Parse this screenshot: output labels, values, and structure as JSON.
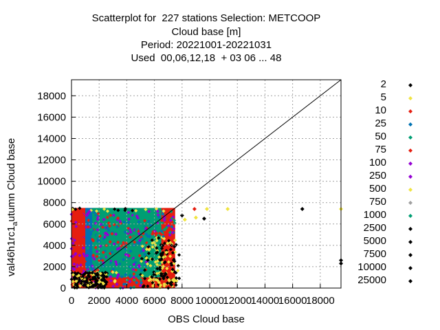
{
  "header": {
    "lines": [
      "Scatterplot for  227 stations Selection: METCOOP",
      "Cloud base [m]",
      "Period: 20221001-20221031",
      "Used  00,06,12,18  + 03 06 ... 48"
    ]
  },
  "chart_data": {
    "type": "scatter",
    "title": "Scatterplot for  227 stations Selection: METCOOP",
    "subtitle": [
      "Cloud base [m]",
      "Period: 20221001-20221031",
      "Used  00,06,12,18  + 03 06 ... 48"
    ],
    "xlabel": "OBS Cloud base",
    "ylabel_main": "val46h1rc1",
    "ylabel_sub": "a",
    "ylabel_rest": "utumn Cloud base",
    "xlim": [
      0,
      19500
    ],
    "ylim": [
      0,
      19500
    ],
    "xticks": [
      0,
      2000,
      4000,
      6000,
      8000,
      10000,
      12000,
      14000,
      16000,
      18000
    ],
    "yticks": [
      0,
      2000,
      4000,
      6000,
      8000,
      10000,
      12000,
      14000,
      16000,
      18000
    ],
    "grid": true,
    "diagonal": true,
    "legend_position": "right",
    "legend": [
      {
        "label": "2",
        "color": "#000000"
      },
      {
        "label": "5",
        "color": "#f0e442"
      },
      {
        "label": "10",
        "color": "#e51e10"
      },
      {
        "label": "25",
        "color": "#0072b2"
      },
      {
        "label": "50",
        "color": "#009e73"
      },
      {
        "label": "75",
        "color": "#e51e10"
      },
      {
        "label": "100",
        "color": "#9400d3"
      },
      {
        "label": "250",
        "color": "#9400d3"
      },
      {
        "label": "500",
        "color": "#f0e442"
      },
      {
        "label": "750",
        "color": "#a0a0a0"
      },
      {
        "label": "1000",
        "color": "#009e73"
      },
      {
        "label": "2500",
        "color": "#000000"
      },
      {
        "label": "5000",
        "color": "#000000"
      },
      {
        "label": "7500",
        "color": "#000000"
      },
      {
        "label": "10000",
        "color": "#000000"
      },
      {
        "label": "25000",
        "color": "#000000"
      }
    ],
    "regions": [
      {
        "name": "purple-band",
        "color": "#9400d3",
        "x": [
          0,
          1200
        ],
        "y": [
          0,
          7500
        ]
      },
      {
        "name": "red-band",
        "color": "#e51e10",
        "x": [
          0,
          7500
        ],
        "y": [
          0,
          7500
        ]
      },
      {
        "name": "blue-core",
        "color": "#0072b2",
        "x": [
          1000,
          4200
        ],
        "y": [
          1500,
          7500
        ]
      },
      {
        "name": "green-core",
        "color": "#009e73",
        "x": [
          1500,
          6500
        ],
        "y": [
          1000,
          7500
        ]
      }
    ],
    "outliers": [
      {
        "x": 8900,
        "y": 7400,
        "color": "#e51e10"
      },
      {
        "x": 9800,
        "y": 7400,
        "color": "#f0e442"
      },
      {
        "x": 11300,
        "y": 7400,
        "color": "#f0e442"
      },
      {
        "x": 16700,
        "y": 7400,
        "color": "#000000"
      },
      {
        "x": 19500,
        "y": 7400,
        "color": "#f0e442"
      },
      {
        "x": 8000,
        "y": 6800,
        "color": "#000000"
      },
      {
        "x": 8200,
        "y": 6400,
        "color": "#f0e442"
      },
      {
        "x": 9000,
        "y": 6600,
        "color": "#f0e442"
      },
      {
        "x": 9600,
        "y": 6500,
        "color": "#000000"
      },
      {
        "x": 19500,
        "y": 2600,
        "color": "#000000"
      },
      {
        "x": 19500,
        "y": 2300,
        "color": "#000000"
      }
    ]
  }
}
